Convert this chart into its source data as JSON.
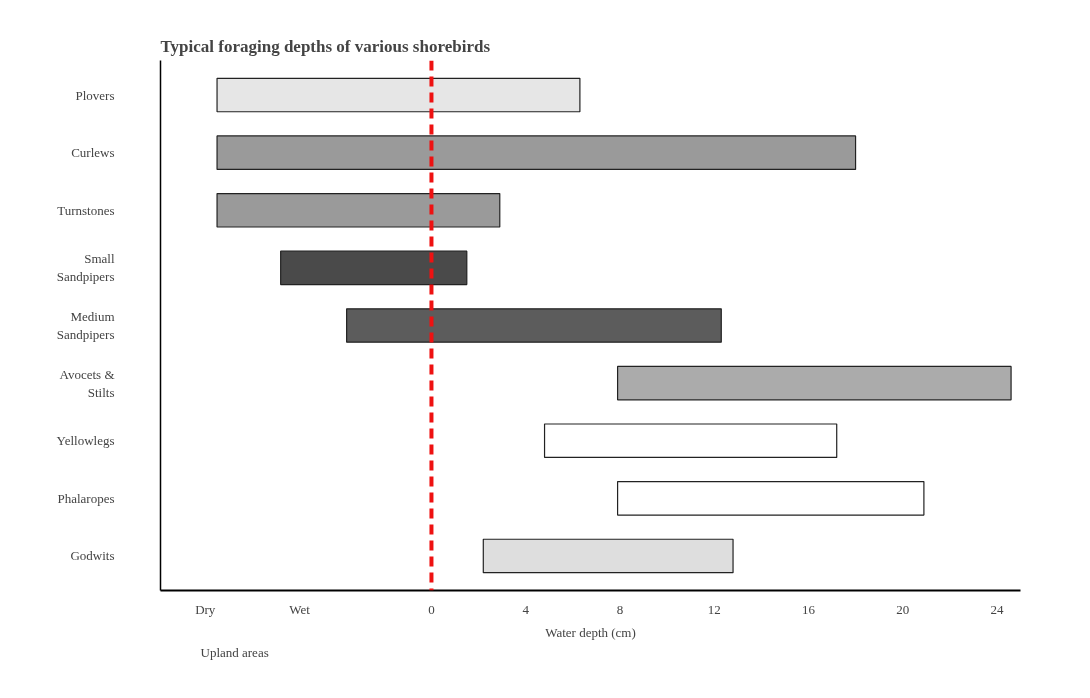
{
  "chart_data": {
    "type": "bar",
    "orientation": "horizontal",
    "title": "Typical foraging depths of  various shorebirds",
    "categories": [
      "Plovers",
      "Curlews",
      "Turnstones",
      "Small Sandpipers",
      "Medium Sandpipers",
      "Avocets & Stilts",
      "Yellowlegs",
      "Phalaropes",
      "Godwits"
    ],
    "base": [
      -9.1,
      -9.1,
      -9.1,
      -6.4,
      -3.6,
      7.9,
      4.8,
      7.9,
      2.2
    ],
    "values": [
      15.4,
      27.1,
      12.0,
      7.9,
      15.9,
      16.7,
      12.4,
      13.0,
      10.6
    ],
    "colors": [
      "#e6e6e6",
      "#9a9a9a",
      "#9a9a9a",
      "#4a4a4a",
      "#5c5c5c",
      "#ababab",
      "#ffffff",
      "#ffffff",
      "#dedede"
    ],
    "xlabel": "Water depth (cm)",
    "xlim": [
      -11.5,
      25
    ],
    "xticks": [
      {
        "value": -9.6,
        "label": "Dry"
      },
      {
        "value": -5.6,
        "label": "Wet"
      },
      0,
      4,
      8,
      12,
      16,
      20,
      24
    ],
    "ref_lines": [
      {
        "axis": "x",
        "value": 0,
        "color": "#ee1111",
        "line_style": "dashed"
      }
    ],
    "annotations": [
      "Upland areas"
    ],
    "grid": false
  }
}
